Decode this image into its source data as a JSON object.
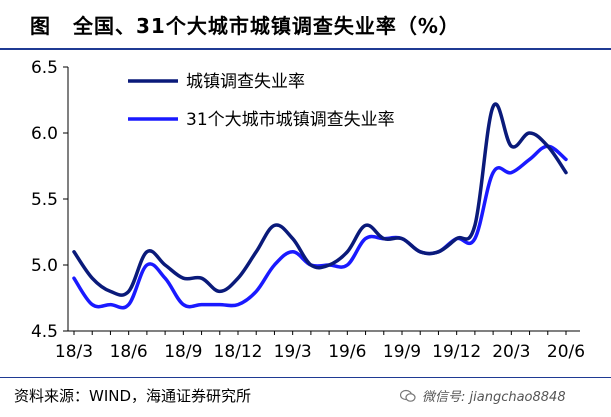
{
  "figure": {
    "label": "图",
    "title": "全国、31个大城市城镇调查失业率（%）",
    "source": "资料来源：WIND，海通证券研究所",
    "watermark": "微信号: jiangchao8848"
  },
  "colors": {
    "series1": "#0a1a7a",
    "series2": "#1a1aff",
    "axis": "#000000",
    "frame": "#1f3a93"
  },
  "chart_data": {
    "type": "line",
    "title": "",
    "xlabel": "",
    "ylabel": "",
    "ylim": [
      4.5,
      6.5
    ],
    "yticks": [
      "6.5",
      "6.0",
      "5.5",
      "5.0",
      "4.5"
    ],
    "ytick_values": [
      6.5,
      6.0,
      5.5,
      5.0,
      4.5
    ],
    "xtick_labels": [
      "18/3",
      "18/6",
      "18/9",
      "18/12",
      "19/3",
      "19/6",
      "19/9",
      "19/12",
      "20/3",
      "20/6"
    ],
    "xtick_indices": [
      0,
      3,
      6,
      9,
      12,
      15,
      18,
      21,
      24,
      27
    ],
    "categories": [
      "18/3",
      "18/4",
      "18/5",
      "18/6",
      "18/7",
      "18/8",
      "18/9",
      "18/10",
      "18/11",
      "18/12",
      "19/1",
      "19/2",
      "19/3",
      "19/4",
      "19/5",
      "19/6",
      "19/7",
      "19/8",
      "19/9",
      "19/10",
      "19/11",
      "19/12",
      "20/1",
      "20/2",
      "20/3",
      "20/4",
      "20/5",
      "20/6"
    ],
    "legend_position": "top-left",
    "grid": false,
    "series": [
      {
        "name": "城镇调查失业率",
        "values": [
          5.1,
          4.9,
          4.8,
          4.8,
          5.1,
          5.0,
          4.9,
          4.9,
          4.8,
          4.9,
          5.1,
          5.3,
          5.2,
          5.0,
          5.0,
          5.1,
          5.3,
          5.2,
          5.2,
          5.1,
          5.1,
          5.2,
          5.3,
          6.2,
          5.9,
          6.0,
          5.9,
          5.7
        ]
      },
      {
        "name": "31个大城市城镇调查失业率",
        "values": [
          4.9,
          4.7,
          4.7,
          4.7,
          5.0,
          4.9,
          4.7,
          4.7,
          4.7,
          4.7,
          4.8,
          5.0,
          5.1,
          5.0,
          5.0,
          5.0,
          5.2,
          5.2,
          5.2,
          5.1,
          5.1,
          5.2,
          5.2,
          5.7,
          5.7,
          5.8,
          5.9,
          5.8
        ]
      }
    ]
  }
}
